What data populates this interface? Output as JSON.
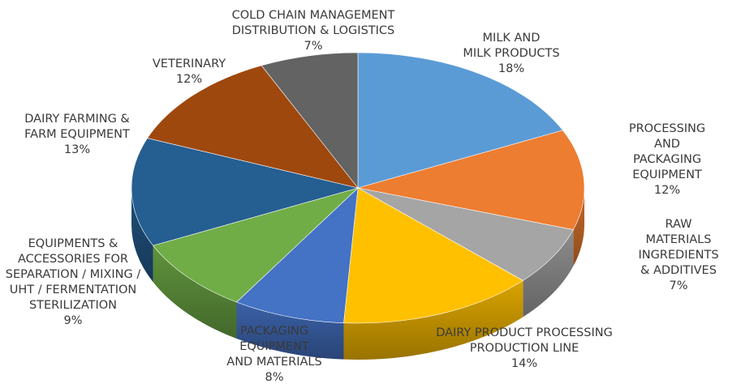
{
  "chart_data": {
    "type": "pie",
    "categories": [
      "MILK AND\nMILK PRODUCTS",
      "PROCESSING AND\nPACKAGING EQUIPMENT",
      "RAW MATERIALS\nINGREDIENTS & ADDITIVES",
      "DAIRY PRODUCT PROCESSING\nPRODUCTION LINE",
      "PACKAGING\nEQUIPMENT\nAND MATERIALS",
      "EQUIPMENTS &\nACCESSORIES FOR\nSEPARATION / MIXING /\nUHT / FERMENTATION\nSTERILIZATION",
      "DAIRY FARMING &\nFARM EQUIPMENT",
      "VETERINARY",
      "COLD CHAIN MANAGEMENT\nDISTRIBUTION & LOGISTICS"
    ],
    "values": [
      18,
      12,
      7,
      14,
      8,
      9,
      13,
      12,
      7
    ],
    "value_labels": [
      "18%",
      "12%",
      "7%",
      "14%",
      "8%",
      "9%",
      "13%",
      "12%",
      "7%"
    ],
    "colors": [
      "#5b9bd5",
      "#ed7d31",
      "#a5a5a5",
      "#ffc000",
      "#4472c4",
      "#70ad47",
      "#255e91",
      "#9e480e",
      "#636363"
    ]
  }
}
